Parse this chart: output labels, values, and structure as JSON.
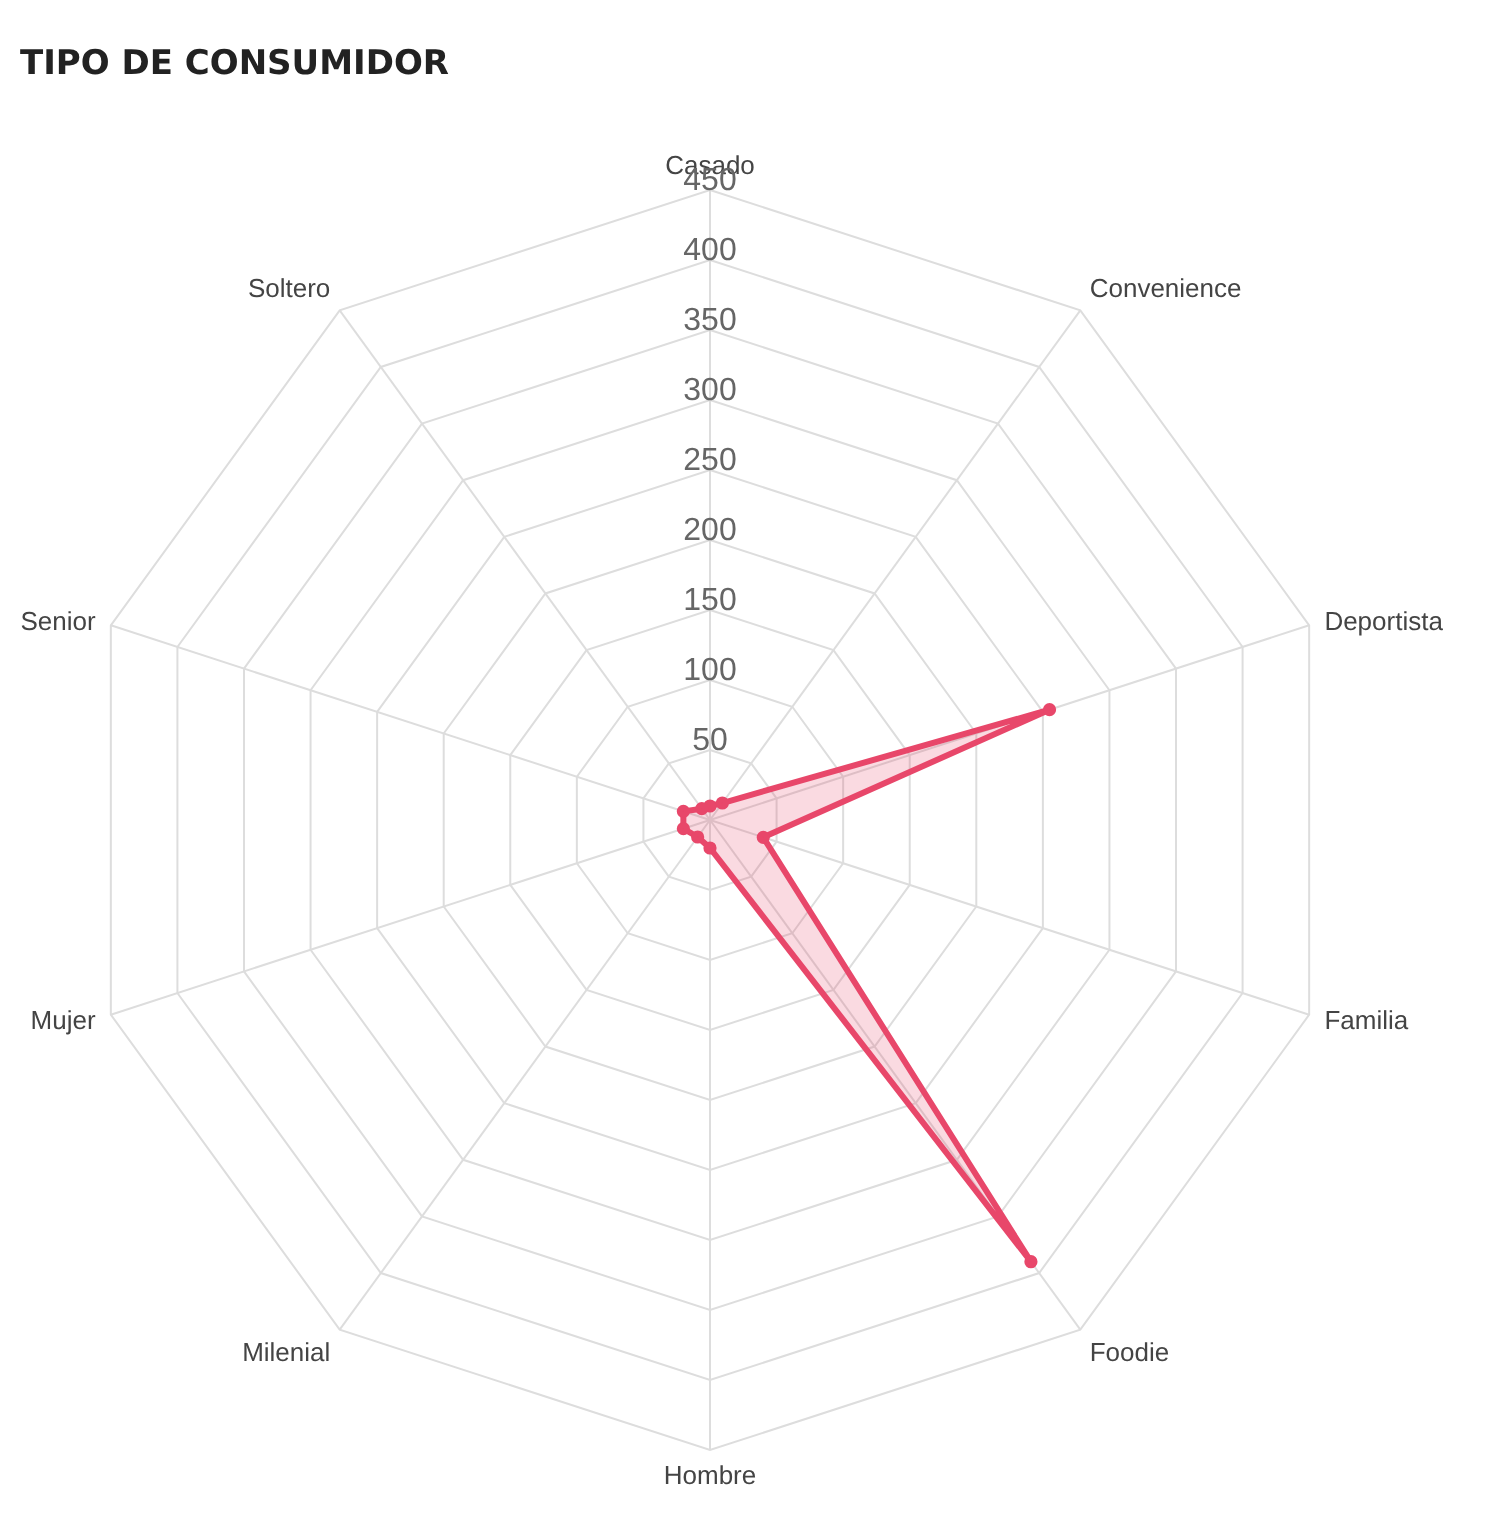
{
  "chart_data": {
    "type": "radar",
    "title": "TIPO DE CONSUMIDOR",
    "categories": [
      "Casado",
      "Convenience",
      "Deportista",
      "Familia",
      "Foodie",
      "Hombre",
      "Milenial",
      "Mujer",
      "Senior",
      "Soltero"
    ],
    "series": [
      {
        "color": "#e8476a",
        "values": [
          10,
          15,
          255,
          40,
          390,
          20,
          15,
          20,
          20,
          10
        ]
      }
    ],
    "ylim": [
      0,
      450
    ],
    "yticks": [
      50,
      100,
      150,
      200,
      250,
      300,
      350,
      400,
      450
    ],
    "grid": true,
    "marker": "circle"
  }
}
